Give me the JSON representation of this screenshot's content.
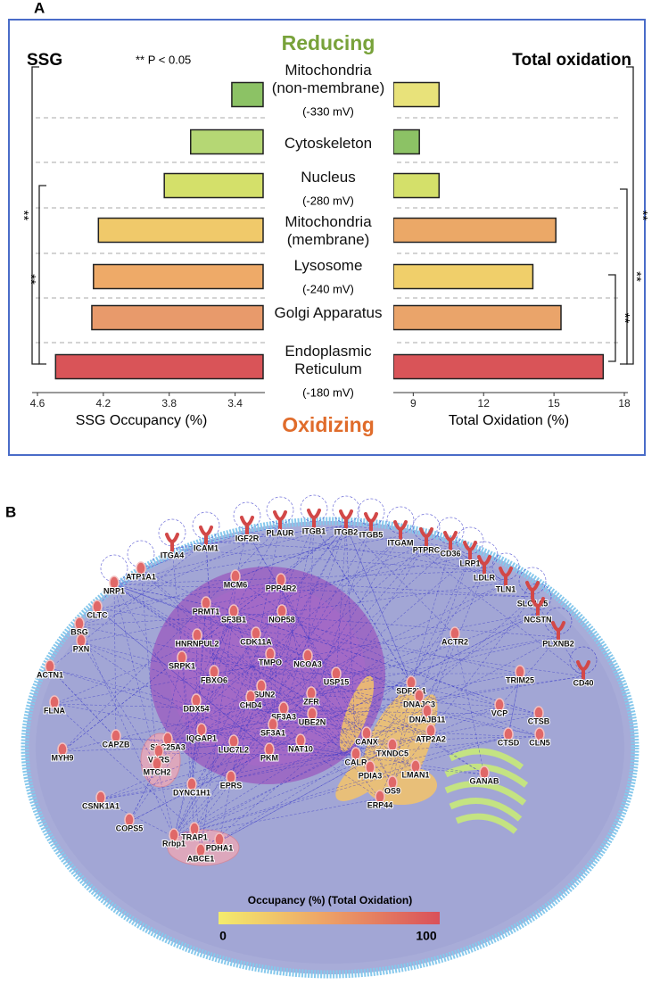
{
  "panel_labels": [
    "A",
    "B"
  ],
  "panel_a": {
    "top_label": "Reducing",
    "bottom_label": "Oxidizing",
    "significance_note": "** P < 0.05",
    "categories": [
      "Mitochondria\n(non-membrane)",
      "Cytoskeleton",
      "Nucleus",
      "Mitochondria\n(membrane)",
      "Lysosome",
      "Golgi Apparatus",
      "Endoplasmic\nReticulum"
    ],
    "potentials": [
      "(-330 mV)",
      null,
      "(-280 mV)",
      null,
      "(-240 mV)",
      null,
      "(-180 mV)"
    ],
    "significance_marks": [
      "**",
      "**",
      "**",
      "**",
      "**"
    ]
  },
  "chart_data": [
    {
      "type": "bar",
      "orientation": "horizontal",
      "title": "SSG",
      "xlabel": "SSG Occupancy (%)",
      "values": [
        3.42,
        3.67,
        3.83,
        4.23,
        4.26,
        4.27,
        4.49
      ],
      "colors": [
        "#8cc265",
        "#b5d774",
        "#d4e06a",
        "#f0c96a",
        "#eeaa68",
        "#e89a6b",
        "#d95458"
      ],
      "xlim": [
        4.6,
        3.23
      ],
      "xticks": [
        4.6,
        4.2,
        3.8,
        3.4
      ]
    },
    {
      "type": "bar",
      "orientation": "horizontal",
      "title": "Total oxidation",
      "xlabel": "Total Oxidation (%)",
      "values": [
        10.1,
        9.26,
        10.1,
        15.08,
        14.1,
        15.3,
        17.1
      ],
      "colors": [
        "#e8e27a",
        "#8cc265",
        "#d4e06a",
        "#eba867",
        "#f0cf6a",
        "#eaa46a",
        "#d95458"
      ],
      "xlim": [
        8.15,
        18
      ],
      "xticks": [
        9,
        12,
        15,
        18
      ]
    }
  ],
  "network": {
    "nodes": [
      "ITGA4",
      "ICAM1",
      "IGF2R",
      "PLAUR",
      "ITGB1",
      "ITGB2",
      "ITGB5",
      "ITGAM",
      "PTPRC",
      "CD36",
      "LRP1",
      "LDLR",
      "TLN1",
      "SLC1A5",
      "NCSTN",
      "PLXNB2",
      "CD40",
      "ATP1A1",
      "NRP1",
      "CLTC",
      "BSG",
      "PXN",
      "ACTN1",
      "FLNA",
      "MYH9",
      "CAPZB",
      "CSNK1A1",
      "COPS5",
      "DYNC1H1",
      "EPRS",
      "TRAP1",
      "Rrbp1",
      "PDHA1",
      "ABCE1",
      "SLC25A3",
      "VARS",
      "MTCH2",
      "IQGAP1",
      "LUC7L2",
      "DDX54",
      "FBXO6",
      "SRPK1",
      "HNRNPUL2",
      "PRMT1",
      "SF3B1",
      "MCM6",
      "PPP4R2",
      "NOP58",
      "CDK11A",
      "NCOA3",
      "TMPO",
      "NSUN2",
      "CHD4",
      "ZFR",
      "SF3A3",
      "UBE2N",
      "USP15",
      "SF3A1",
      "PKM",
      "NAT10",
      "ACTR2",
      "TRIM25",
      "VCP",
      "CTSB",
      "CTSD",
      "CLN5",
      "SDF2L1",
      "DNAJC3",
      "DNAJB11",
      "CANX",
      "CALR",
      "TXNDC5",
      "ATP2A2",
      "PDIA3",
      "LMAN1",
      "OS9",
      "ERP44",
      "GANAB"
    ],
    "legend": {
      "title": "Occupancy (%) (Total Oxidation)",
      "min": 0,
      "max": 100
    }
  }
}
